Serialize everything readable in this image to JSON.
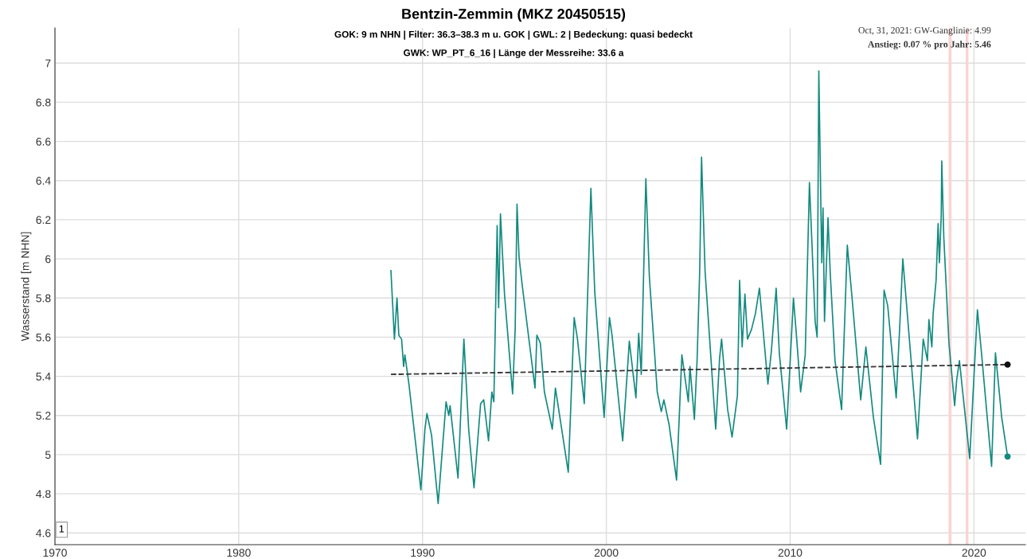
{
  "chart_data": {
    "type": "line",
    "title": "Bentzin-Zemmin (MKZ 20450515)",
    "subtitle": "GOK: 9 m NHN | Filter: 36.3–38.3 m u. GOK | GWL: 2 | Bedeckung: quasi bedeckt\nGWK: WP_PT_6_16 | Länge der Messreihe: 33.6 a",
    "ylabel": "Wasserstand [m NHN]",
    "xlim": [
      1970,
      2022.8
    ],
    "xticks": [
      1970,
      1980,
      1990,
      2000,
      2010,
      2020
    ],
    "ylim": [
      4.54,
      7.18
    ],
    "yticks": [
      4.6,
      4.8,
      5,
      5.2,
      5.4,
      5.6,
      5.8,
      6,
      6.2,
      6.4,
      6.6,
      6.8,
      7
    ],
    "grid": true,
    "legend": false,
    "series": [
      {
        "color": "#138a80",
        "x": [
          1988.28,
          1988.47,
          1988.61,
          1988.71,
          1988.86,
          1988.97,
          1989.04,
          1989.26,
          1989.91,
          1990.13,
          1990.24,
          1990.49,
          1990.85,
          1991.28,
          1991.43,
          1991.5,
          1991.93,
          1992.25,
          1992.51,
          1992.8,
          1993.16,
          1993.33,
          1993.59,
          1993.77,
          1993.88,
          1994.06,
          1994.14,
          1994.24,
          1994.46,
          1994.9,
          1995.04,
          1995.14,
          1995.25,
          1995.43,
          1995.76,
          1996.12,
          1996.22,
          1996.41,
          1996.63,
          1997.06,
          1997.23,
          1997.93,
          1998.25,
          1998.43,
          1998.8,
          1999.16,
          1999.37,
          1999.88,
          2000.17,
          2000.31,
          2000.89,
          2001.25,
          2001.61,
          2001.76,
          2001.9,
          2002.15,
          2002.34,
          2002.77,
          2002.99,
          2003.13,
          2003.42,
          2003.82,
          2004.11,
          2004.46,
          2004.55,
          2004.79,
          2004.94,
          2005.08,
          2005.18,
          2005.37,
          2005.95,
          2006.16,
          2006.27,
          2006.6,
          2006.84,
          2007.13,
          2007.25,
          2007.39,
          2007.54,
          2007.68,
          2007.9,
          2008.11,
          2008.33,
          2008.79,
          2008.98,
          2009.24,
          2009.41,
          2009.81,
          2010.18,
          2010.35,
          2010.57,
          2010.82,
          2011.05,
          2011.36,
          2011.47,
          2011.56,
          2011.72,
          2011.79,
          2011.87,
          2012.06,
          2012.18,
          2012.44,
          2012.8,
          2013.11,
          2013.37,
          2013.84,
          2014.12,
          2014.53,
          2014.92,
          2015.11,
          2015.31,
          2015.77,
          2015.97,
          2016.13,
          2016.93,
          2017.24,
          2017.47,
          2017.55,
          2017.71,
          2017.78,
          2017.94,
          2018.05,
          2018.12,
          2018.22,
          2018.25,
          2018.36,
          2018.64,
          2018.95,
          2019.06,
          2019.21,
          2019.77,
          2020.19,
          2020.42,
          2020.96,
          2021.17,
          2021.51,
          2021.83
        ],
        "values": [
          5.94,
          5.59,
          5.8,
          5.61,
          5.59,
          5.45,
          5.51,
          5.36,
          4.82,
          5.13,
          5.21,
          5.1,
          4.75,
          5.27,
          5.2,
          5.25,
          4.88,
          5.59,
          5.13,
          4.83,
          5.26,
          5.28,
          5.07,
          5.32,
          5.27,
          6.17,
          5.75,
          6.23,
          5.82,
          5.31,
          5.64,
          6.28,
          6.01,
          5.86,
          5.61,
          5.34,
          5.61,
          5.57,
          5.32,
          5.13,
          5.34,
          4.91,
          5.7,
          5.59,
          5.26,
          6.36,
          5.83,
          5.19,
          5.7,
          5.61,
          5.07,
          5.58,
          5.29,
          5.62,
          5.41,
          6.41,
          5.91,
          5.32,
          5.22,
          5.28,
          5.15,
          4.87,
          5.51,
          5.27,
          5.45,
          5.18,
          5.49,
          5.94,
          6.52,
          5.94,
          5.13,
          5.49,
          5.59,
          5.23,
          5.09,
          5.3,
          5.89,
          5.55,
          5.82,
          5.59,
          5.64,
          5.72,
          5.85,
          5.36,
          5.53,
          5.85,
          5.52,
          5.13,
          5.8,
          5.6,
          5.32,
          5.51,
          6.39,
          5.68,
          5.6,
          6.96,
          5.98,
          6.26,
          5.68,
          6.21,
          5.93,
          5.48,
          5.23,
          6.07,
          5.8,
          5.28,
          5.55,
          5.19,
          4.95,
          5.84,
          5.76,
          5.29,
          5.67,
          6.0,
          5.08,
          5.59,
          5.48,
          5.69,
          5.55,
          5.72,
          5.89,
          6.18,
          5.98,
          6.22,
          6.5,
          6.11,
          5.57,
          5.25,
          5.38,
          5.48,
          4.98,
          5.74,
          5.51,
          4.94,
          5.52,
          5.19,
          4.99
        ]
      },
      {
        "color": "#333333",
        "line_style": "dashed",
        "x": [
          1988.28,
          2021.83
        ],
        "values": [
          5.41,
          5.46
        ]
      },
      {
        "type": "scatter",
        "color": "#138a80",
        "marker": "circle",
        "x": [
          2021.83
        ],
        "values": [
          4.99
        ]
      },
      {
        "type": "scatter",
        "color": "#111111",
        "marker": "circle",
        "x": [
          2021.83
        ],
        "values": [
          5.46
        ]
      }
    ],
    "bands": [
      {
        "axis": "x",
        "from": 2018.62,
        "to": 2018.78,
        "color": "#f9d4d4"
      },
      {
        "axis": "x",
        "from": 2019.55,
        "to": 2019.7,
        "color": "#f9d4d4"
      }
    ],
    "annotations": [
      "Oct, 31, 2021: GW-Ganglinie: 4.99",
      "Anstieg: 0.07 % pro Jahr: 5.46",
      "1"
    ]
  }
}
